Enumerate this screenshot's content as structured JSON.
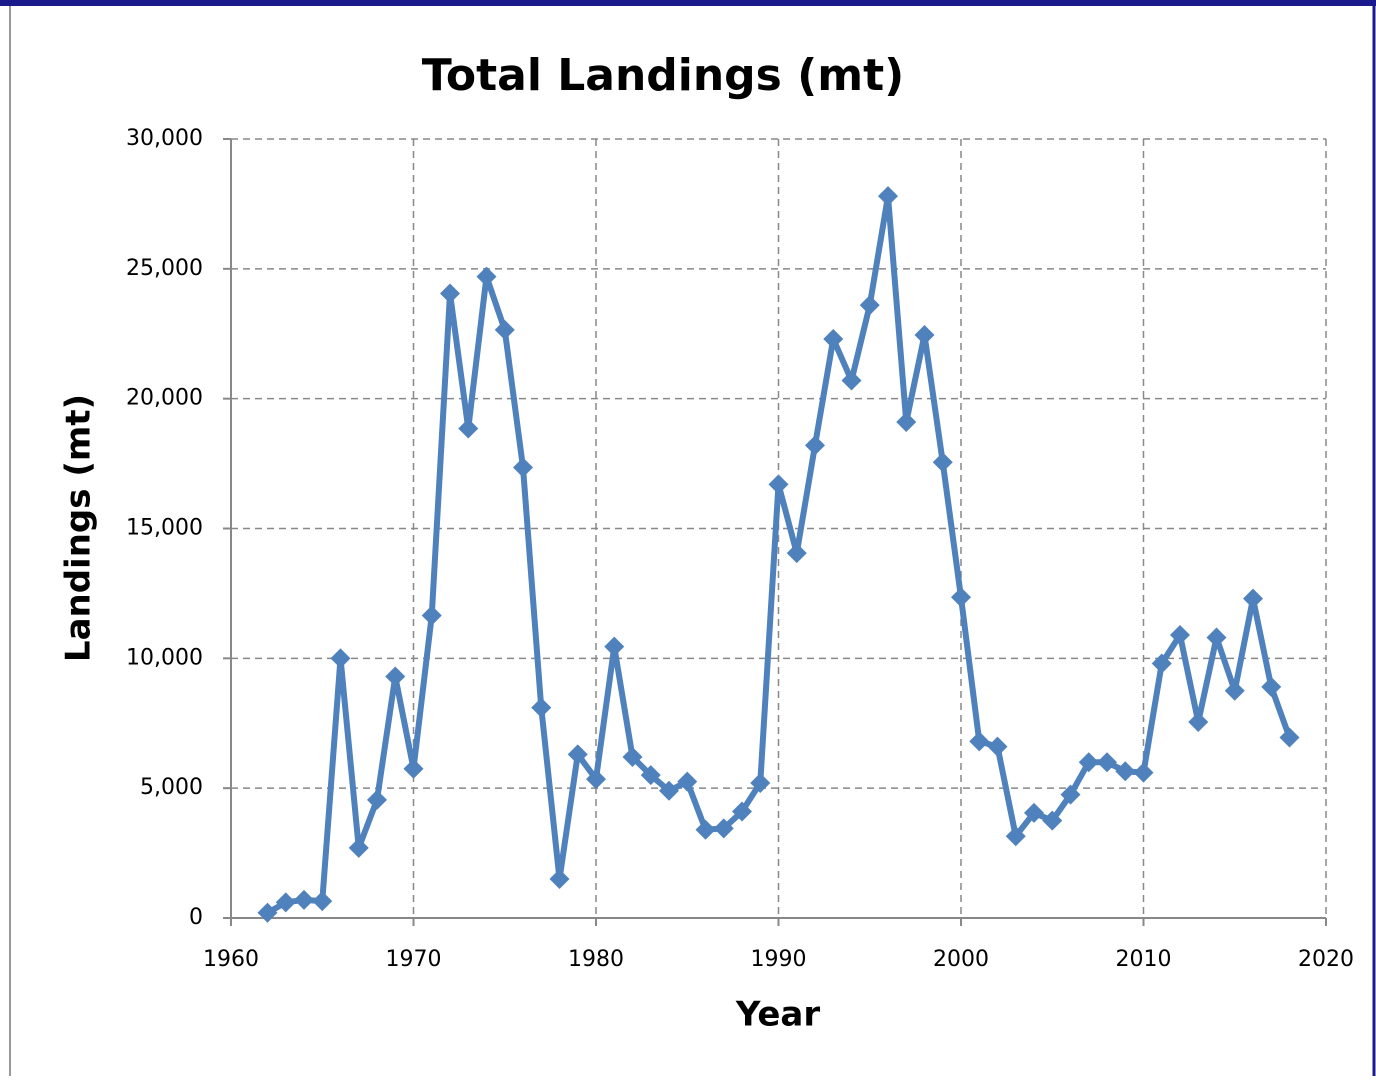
{
  "chart_data": {
    "type": "line",
    "title": "Total Landings (mt)",
    "x_label": "Year",
    "y_label": "Landings (mt)",
    "x": [
      1962,
      1963,
      1964,
      1965,
      1966,
      1967,
      1968,
      1969,
      1970,
      1971,
      1972,
      1973,
      1974,
      1975,
      1976,
      1977,
      1978,
      1979,
      1980,
      1981,
      1982,
      1983,
      1984,
      1985,
      1986,
      1987,
      1988,
      1989,
      1990,
      1991,
      1992,
      1993,
      1994,
      1995,
      1996,
      1997,
      1998,
      1999,
      2000,
      2001,
      2002,
      2003,
      2004,
      2005,
      2006,
      2007,
      2008,
      2009,
      2010,
      2011,
      2012,
      2013,
      2014,
      2015,
      2016,
      2017,
      2018
    ],
    "series": [
      {
        "name": "Total Landings",
        "color": "#4f81bd",
        "values": [
          200,
          600,
          700,
          650,
          10000,
          2700,
          4550,
          9300,
          5750,
          11650,
          24050,
          18850,
          24700,
          22650,
          17350,
          8100,
          1500,
          6300,
          5350,
          10450,
          6200,
          5500,
          4900,
          5250,
          3400,
          3450,
          4100,
          5200,
          16700,
          14050,
          18200,
          22300,
          20700,
          23600,
          27800,
          19100,
          22450,
          17550,
          12350,
          6800,
          6600,
          3150,
          4050,
          3750,
          4750,
          6000,
          6000,
          5650,
          5600,
          9800,
          10900,
          7550,
          10800,
          8750,
          12300,
          8900,
          6950
        ]
      }
    ],
    "xlim": [
      1960,
      2020
    ],
    "xticks": [
      1960,
      1970,
      1980,
      1990,
      2000,
      2010,
      2020
    ],
    "ylim": [
      0,
      30000
    ],
    "yticks": [
      0,
      {
        "value": 5000,
        "label": "5,000"
      },
      {
        "value": 10000,
        "label": "10,000"
      },
      {
        "value": 15000,
        "label": "15,000"
      },
      {
        "value": 20000,
        "label": "20,000"
      },
      {
        "value": 25000,
        "label": "25,000"
      },
      {
        "value": 30000,
        "label": "30,000"
      }
    ],
    "grid": true
  }
}
